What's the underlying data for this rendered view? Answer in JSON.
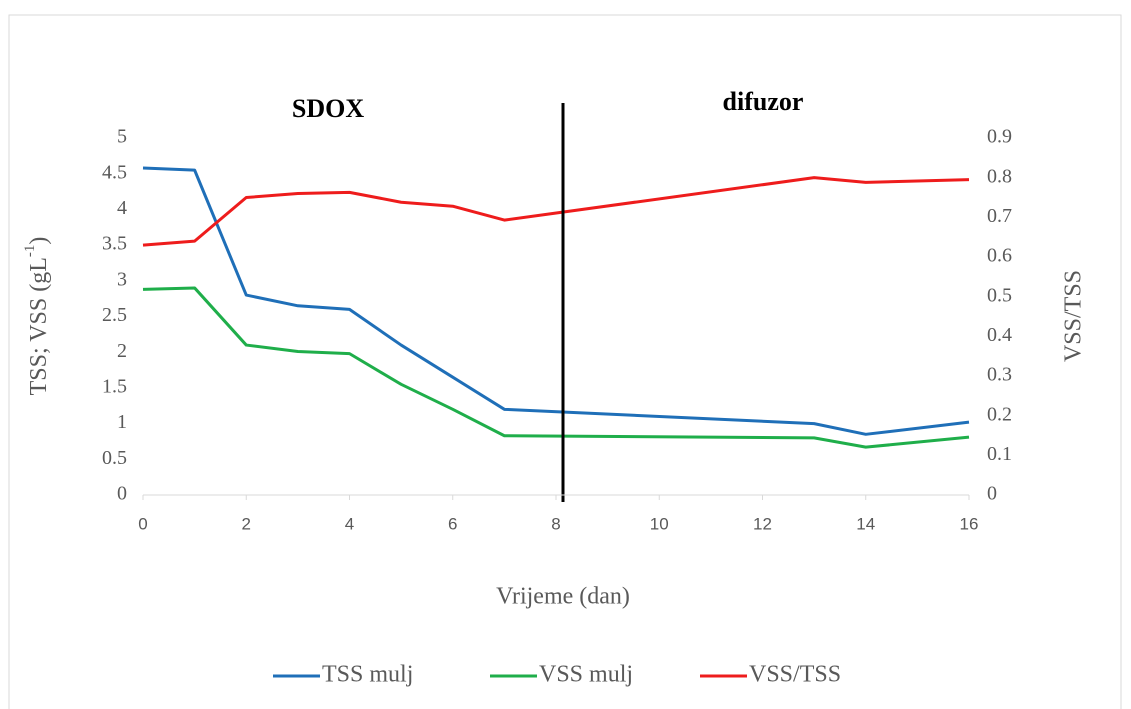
{
  "chart_data": {
    "type": "line",
    "annotations": [
      "SDOX",
      "difuzor"
    ],
    "x_label": "Vrijeme (dan)",
    "y_label": [
      "TSS; VSS (gL",
      "-1",
      ")"
    ],
    "y2_label": "VSS/TSS",
    "x": [
      0,
      1,
      2,
      3,
      4,
      5,
      6,
      7,
      13,
      14,
      16
    ],
    "series": [
      {
        "name": "TSS mulj",
        "color": "#1f6fb8",
        "values": [
          4.58,
          4.55,
          2.8,
          2.65,
          2.6,
          2.1,
          1.65,
          1.2,
          1.0,
          0.85,
          1.02
        ]
      },
      {
        "name": "VSS mulj",
        "color": "#1fae4a",
        "values": [
          2.88,
          2.9,
          2.1,
          2.01,
          1.98,
          1.55,
          1.2,
          0.83,
          0.8,
          0.67,
          0.81
        ]
      },
      {
        "name": "VSS/TSS",
        "color": "#ee1c1c",
        "axis": "y2",
        "values": [
          0.63,
          0.64,
          0.75,
          0.76,
          0.763,
          0.738,
          0.728,
          0.693,
          0.8,
          0.788,
          0.795
        ]
      }
    ],
    "xlim": [
      0,
      16
    ],
    "xticks": [
      0,
      2,
      4,
      6,
      8,
      10,
      12,
      14,
      16
    ],
    "ylim": [
      0,
      5
    ],
    "yticks": [
      0,
      0.5,
      1,
      1.5,
      2,
      2.5,
      3,
      3.5,
      4,
      4.5,
      5
    ],
    "y2lim": [
      0,
      0.9
    ],
    "y2ticks": [
      0,
      0.1,
      0.2,
      0.3,
      0.4,
      0.5,
      0.6,
      0.7,
      0.8,
      0.9
    ]
  }
}
